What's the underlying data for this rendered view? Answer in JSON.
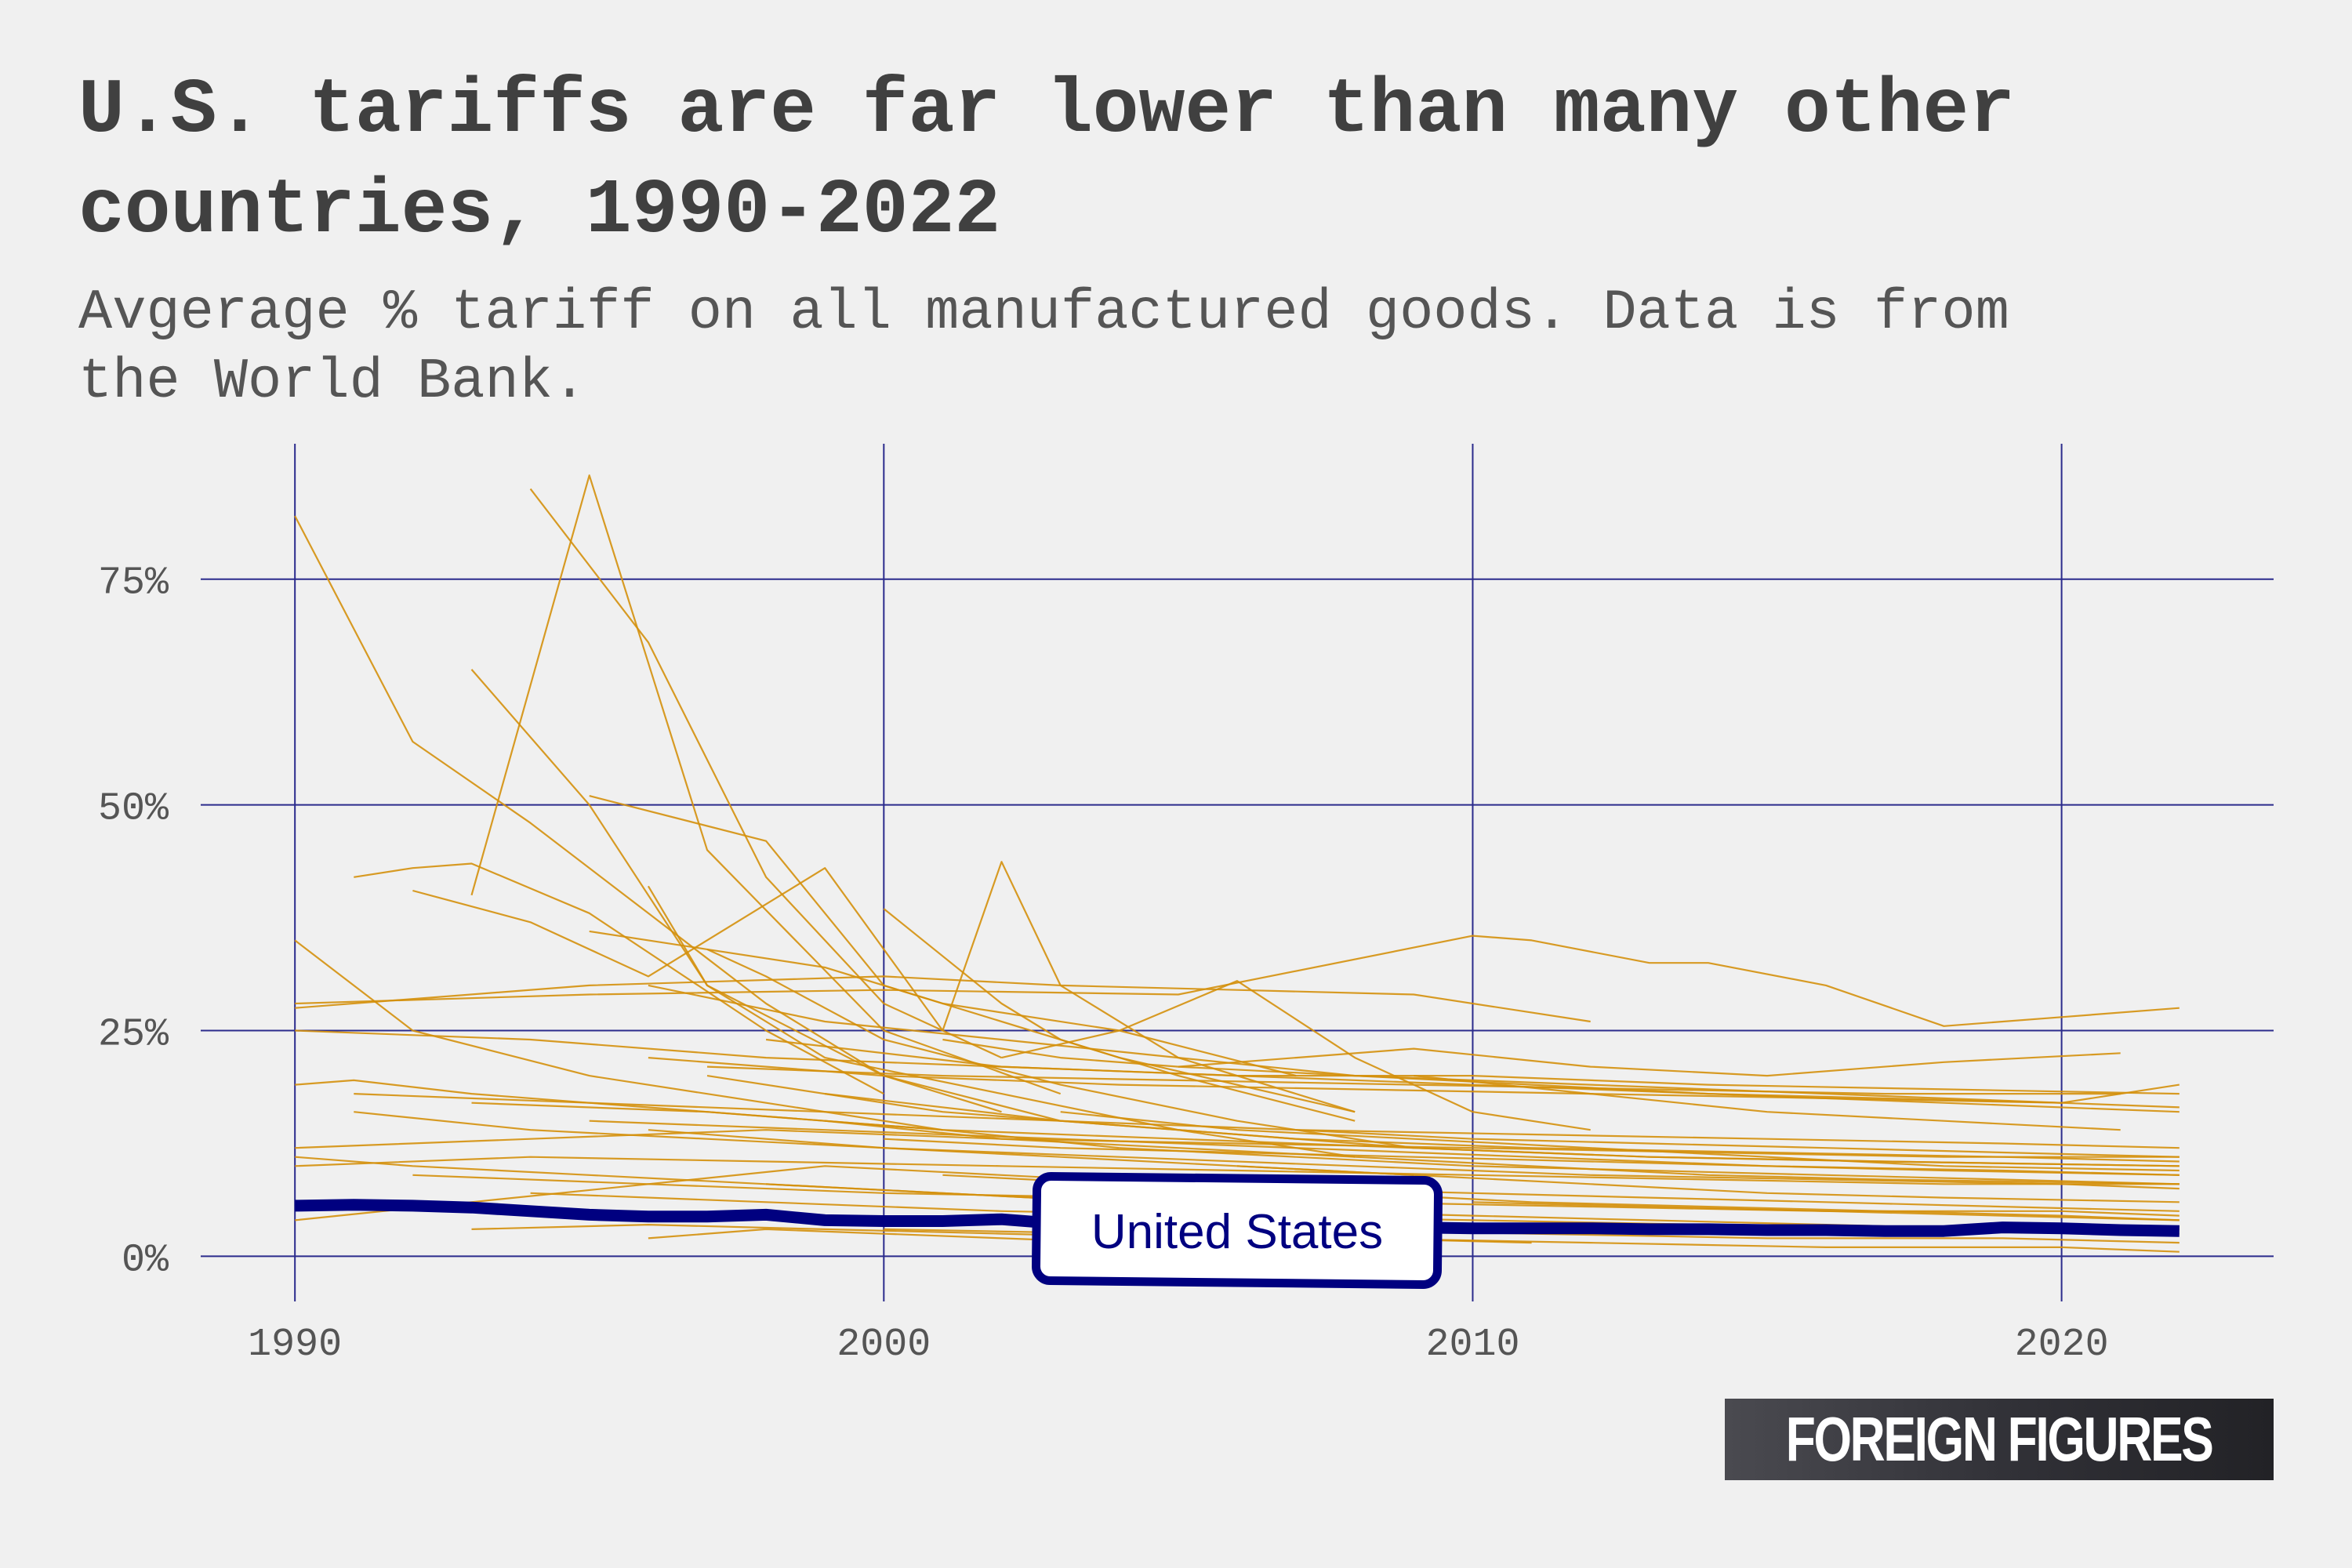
{
  "title": "U.S. tariffs are far lower than many other countries, 1990-2022",
  "subtitle": "Avgerage % tariff on all manufactured goods. Data is from the World Bank.",
  "logo_text": "FOREIGN FIGURES",
  "colors": {
    "background": "#f0f0f0",
    "grid": "#2b2b8c",
    "other_countries": "#d4900c",
    "united_states": "#000080",
    "title": "#404040"
  },
  "chart_data": {
    "type": "line",
    "xlim": [
      1988.4,
      2023.6
    ],
    "ylim": [
      -5,
      90
    ],
    "x_ticks": [
      1990,
      2000,
      2010,
      2020
    ],
    "x_tick_labels": [
      "1990",
      "2000",
      "2010",
      "2020"
    ],
    "y_ticks": [
      0,
      25,
      50,
      75
    ],
    "y_tick_labels": [
      "0%",
      "25%",
      "50%",
      "75%"
    ],
    "grid": true,
    "legend": "none",
    "highlight_series": {
      "name": "United States",
      "x": [
        1990,
        1991,
        1992,
        1993,
        1994,
        1995,
        1996,
        1997,
        1998,
        1999,
        2000,
        2001,
        2002,
        2003,
        2004,
        2005,
        2006,
        2007,
        2008,
        2009,
        2010,
        2011,
        2012,
        2013,
        2014,
        2015,
        2016,
        2017,
        2018,
        2019,
        2020,
        2021,
        2022
      ],
      "values": [
        5.6,
        5.7,
        5.6,
        5.4,
        5.0,
        4.6,
        4.4,
        4.4,
        4.6,
        4.0,
        3.9,
        3.9,
        4.1,
        3.6,
        3.5,
        3.4,
        3.3,
        3.2,
        3.2,
        3.2,
        3.1,
        3.1,
        3.1,
        3.0,
        3.0,
        2.9,
        2.9,
        2.8,
        2.8,
        3.2,
        3.1,
        2.9,
        2.8
      ]
    },
    "other_series": [
      {
        "x": [
          1990,
          1992,
          1994,
          1996,
          1998,
          2000,
          2002
        ],
        "values": [
          82,
          57,
          48,
          38,
          28,
          20,
          16
        ]
      },
      {
        "x": [
          1994,
          1996,
          1998,
          2000,
          2002
        ],
        "values": [
          85,
          68,
          42,
          28,
          22
        ]
      },
      {
        "x": [
          1993,
          1995,
          1997,
          2000,
          2003
        ],
        "values": [
          40,
          86.5,
          45,
          25,
          18
        ]
      },
      {
        "x": [
          1993,
          1995,
          1997,
          2000,
          2003
        ],
        "values": [
          65,
          50,
          30,
          20,
          15
        ]
      },
      {
        "x": [
          1995,
          1998,
          2000,
          2004,
          2008
        ],
        "values": [
          51,
          46,
          30,
          22,
          16
        ]
      },
      {
        "x": [
          2000,
          2002,
          2003,
          2005,
          2008
        ],
        "values": [
          38.5,
          28,
          24,
          20,
          15
        ]
      },
      {
        "x": [
          2001,
          2002,
          2003,
          2005,
          2008
        ],
        "values": [
          25,
          43.7,
          30,
          22,
          16
        ]
      },
      {
        "x": [
          1991,
          1992,
          1993,
          1995,
          1998,
          2000
        ],
        "values": [
          42,
          43,
          43.5,
          38,
          25,
          18
        ]
      },
      {
        "x": [
          1992,
          1994,
          1996,
          1999,
          2001
        ],
        "values": [
          40.5,
          37,
          31,
          43,
          25
        ]
      },
      {
        "x": [
          1995,
          1997,
          1999,
          2001,
          2004,
          2007
        ],
        "values": [
          36,
          34,
          32,
          28,
          25,
          20
        ]
      },
      {
        "x": [
          1990,
          1992,
          1995,
          1998,
          2001,
          2004
        ],
        "values": [
          35,
          25,
          20,
          17,
          14,
          12
        ]
      },
      {
        "x": [
          1990,
          1995,
          2000,
          2005,
          2010,
          2011,
          2013,
          2014,
          2016,
          2018,
          2020,
          2022
        ],
        "values": [
          28,
          29,
          29.5,
          29,
          35.5,
          35,
          32.5,
          32.5,
          30,
          25.5,
          26.5,
          27.5
        ]
      },
      {
        "x": [
          1990,
          1995,
          2000,
          2003,
          2006,
          2009,
          2012
        ],
        "values": [
          27.5,
          30,
          31,
          30,
          29.5,
          29,
          26
        ]
      },
      {
        "x": [
          1996,
          1999,
          2002,
          2005,
          2008,
          2012,
          2016,
          2020
        ],
        "values": [
          30,
          26,
          24,
          22,
          20,
          19,
          18,
          17
        ]
      },
      {
        "x": [
          1990,
          1994,
          1998,
          2002,
          2006,
          2010,
          2014,
          2018,
          2022
        ],
        "values": [
          25,
          24,
          22,
          21,
          20,
          20,
          19,
          18.5,
          18
        ]
      },
      {
        "x": [
          1996,
          2000,
          2004,
          2008,
          2012,
          2016,
          2020,
          2022
        ],
        "values": [
          22,
          20,
          19,
          18.5,
          18,
          17.5,
          17,
          16.5
        ]
      },
      {
        "x": [
          1997,
          2001,
          2005,
          2009,
          2013,
          2017,
          2021
        ],
        "values": [
          21,
          20,
          19.5,
          19,
          18.5,
          18,
          18
        ]
      },
      {
        "x": [
          1998,
          2002,
          2006,
          2010,
          2014,
          2018,
          2022
        ],
        "values": [
          24,
          21,
          20,
          19,
          18,
          17,
          16
        ]
      },
      {
        "x": [
          1991,
          1995,
          1999,
          2003,
          2007,
          2011,
          2015,
          2019,
          2022
        ],
        "values": [
          18,
          17,
          16,
          15,
          14,
          13.5,
          13,
          12.5,
          12
        ]
      },
      {
        "x": [
          1990,
          1994,
          1998,
          2002,
          2006,
          2010,
          2014,
          2018,
          2022
        ],
        "values": [
          12,
          13,
          14,
          13,
          12.5,
          12,
          11.5,
          11,
          11
        ]
      },
      {
        "x": [
          1993,
          1997,
          2001,
          2005,
          2009,
          2013,
          2017,
          2022
        ],
        "values": [
          17,
          16,
          14,
          13,
          12,
          11,
          10.5,
          10
        ]
      },
      {
        "x": [
          1995,
          1999,
          2003,
          2007,
          2011,
          2015,
          2019,
          2022
        ],
        "values": [
          15,
          14,
          13,
          12,
          11,
          10,
          9.5,
          9
        ]
      },
      {
        "x": [
          1990,
          1994,
          1998,
          2002,
          2006,
          2010,
          2014,
          2018,
          2022
        ],
        "values": [
          10,
          11,
          10.5,
          10,
          9.5,
          9,
          8.5,
          8,
          8
        ]
      },
      {
        "x": [
          1996,
          2000,
          2004,
          2008,
          2012,
          2016,
          2020,
          2022
        ],
        "values": [
          14,
          12,
          11,
          10,
          9,
          8.5,
          8,
          7.5
        ]
      },
      {
        "x": [
          1997,
          2001,
          2005,
          2009,
          2013,
          2017,
          2022
        ],
        "values": [
          20,
          16,
          14,
          12,
          11,
          10.5,
          10
        ]
      },
      {
        "x": [
          1999,
          2003,
          2007,
          2011,
          2015,
          2019,
          2022
        ],
        "values": [
          18,
          15,
          13,
          12,
          11.5,
          11,
          10.5
        ]
      },
      {
        "x": [
          1990,
          1993,
          1996,
          1999,
          2002,
          2005,
          2008
        ],
        "values": [
          4,
          6,
          8,
          10,
          9,
          8,
          7
        ]
      },
      {
        "x": [
          1992,
          1996,
          2000,
          2004,
          2008,
          2012,
          2016,
          2020,
          2022
        ],
        "values": [
          9,
          8,
          7,
          6.5,
          6,
          5.5,
          5,
          5,
          4.5
        ]
      },
      {
        "x": [
          1994,
          1998,
          2002,
          2006,
          2010,
          2014,
          2018,
          2022
        ],
        "values": [
          7,
          6,
          5,
          4.5,
          4,
          3.5,
          3,
          2.5
        ]
      },
      {
        "x": [
          1995,
          1999,
          2003,
          2007,
          2011,
          2015,
          2019,
          2022
        ],
        "values": [
          5,
          4,
          3.5,
          3,
          2.5,
          2,
          2,
          1.5
        ]
      },
      {
        "x": [
          2000,
          2004,
          2008,
          2012,
          2016,
          2020,
          2022
        ],
        "values": [
          3,
          2.5,
          2,
          1.5,
          1,
          1,
          0.5
        ]
      },
      {
        "x": [
          1996,
          1997,
          1999,
          2002,
          2005,
          2008
        ],
        "values": [
          41,
          30,
          22,
          18,
          14,
          11
        ]
      },
      {
        "x": [
          1997,
          1998,
          2000,
          2003,
          2006,
          2009
        ],
        "values": [
          34,
          31,
          24,
          19,
          15,
          12
        ]
      },
      {
        "x": [
          2002,
          2004,
          2006,
          2008,
          2010,
          2012
        ],
        "values": [
          22,
          25,
          30.5,
          22,
          16,
          14
        ]
      },
      {
        "x": [
          2005,
          2007,
          2009,
          2012,
          2015,
          2018,
          2021
        ],
        "values": [
          21,
          22,
          23,
          21,
          20,
          21.5,
          22.5
        ]
      },
      {
        "x": [
          2001,
          2003,
          2005,
          2008,
          2011,
          2014,
          2017,
          2020,
          2022
        ],
        "values": [
          24,
          22,
          21,
          20,
          19,
          18,
          17.5,
          17,
          19
        ]
      },
      {
        "x": [
          1990,
          1991,
          1993,
          1995,
          1997,
          1999,
          2001
        ],
        "values": [
          19,
          19.5,
          18,
          17,
          16,
          15,
          14
        ]
      },
      {
        "x": [
          1991,
          1994,
          1997,
          2000,
          2003,
          2006,
          2009
        ],
        "values": [
          16,
          14,
          13,
          12,
          11,
          10,
          9
        ]
      },
      {
        "x": [
          2003,
          2006,
          2009,
          2012,
          2015,
          2018,
          2022
        ],
        "values": [
          16,
          14,
          13,
          12,
          11,
          10,
          9.5
        ]
      },
      {
        "x": [
          2004,
          2007,
          2010,
          2013,
          2016,
          2019,
          2022
        ],
        "values": [
          12,
          11,
          10,
          9.5,
          9,
          8.5,
          8
        ]
      },
      {
        "x": [
          2006,
          2009,
          2012,
          2015,
          2018,
          2022
        ],
        "values": [
          10,
          9,
          8,
          7,
          6.5,
          6
        ]
      },
      {
        "x": [
          2008,
          2011,
          2014,
          2017,
          2020,
          2022
        ],
        "values": [
          7,
          6,
          5.5,
          5,
          4.5,
          4
        ]
      },
      {
        "x": [
          1998,
          2001,
          2004,
          2007,
          2010,
          2013,
          2016,
          2019,
          2022
        ],
        "values": [
          8,
          7,
          6,
          5,
          4.5,
          4,
          3.5,
          3,
          3
        ]
      },
      {
        "x": [
          1993,
          1996,
          1999,
          2002,
          2005,
          2008,
          2011
        ],
        "values": [
          3,
          3.5,
          3,
          2.5,
          2,
          2,
          1.5
        ]
      },
      {
        "x": [
          2000,
          2003,
          2006,
          2009,
          2012,
          2015,
          2018,
          2022
        ],
        "values": [
          13,
          12,
          11.5,
          11,
          10.5,
          10,
          9.5,
          9
        ]
      },
      {
        "x": [
          1999,
          2002,
          2005,
          2008,
          2011,
          2014,
          2017,
          2022
        ],
        "values": [
          15,
          13,
          12,
          11,
          10,
          9,
          8.5,
          8
        ]
      },
      {
        "x": [
          1990,
          1992,
          1995,
          1998,
          2001,
          2004,
          2007
        ],
        "values": [
          11,
          10,
          9,
          8,
          7,
          6,
          5
        ]
      },
      {
        "x": [
          2007,
          2010,
          2013,
          2016,
          2019,
          2022
        ],
        "values": [
          14,
          13,
          12.5,
          12,
          11.5,
          11
        ]
      },
      {
        "x": [
          2009,
          2012,
          2015,
          2018,
          2021
        ],
        "values": [
          20,
          18,
          16,
          15,
          14
        ]
      },
      {
        "x": [
          2010,
          2013,
          2016,
          2019,
          2022
        ],
        "values": [
          6,
          5.5,
          5,
          4.5,
          4
        ]
      },
      {
        "x": [
          1996,
          1998,
          2000,
          2002,
          2004,
          2006
        ],
        "values": [
          2,
          3,
          2.5,
          2,
          1.5,
          1
        ]
      },
      {
        "x": [
          2001,
          2004,
          2007,
          2010,
          2013,
          2016,
          2019,
          2022
        ],
        "values": [
          9,
          8,
          7.5,
          7,
          6.5,
          6,
          5.5,
          5
        ]
      }
    ]
  }
}
